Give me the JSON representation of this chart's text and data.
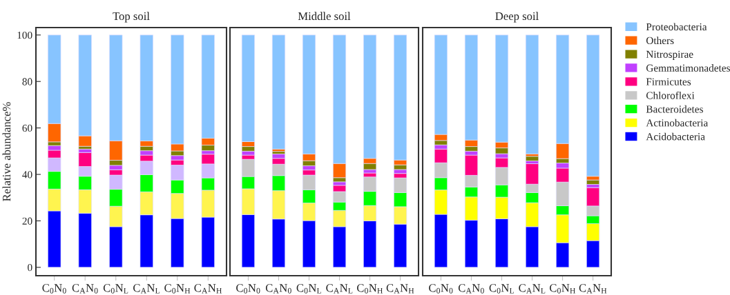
{
  "chart_data": [
    {
      "type": "bar",
      "stacked": true,
      "title": "Top soil",
      "ylabel": "Relative abundance%",
      "categories": [
        "C$_{0}$N$_{0}$",
        "C$_{A}$N$_{0}$",
        "C$_{0}$N$_{L}$",
        "C$_{A}$N$_{L}$",
        "C$_{0}$N$_{H}$",
        "C$_{A}$N$_{H}$"
      ],
      "ylim": [
        -3.6,
        103.2
      ],
      "yticks": [
        0,
        20,
        40,
        60,
        80,
        100
      ],
      "grid": false,
      "legend": false,
      "series": [
        {
          "color": "#0000ff",
          "values": [
            24.3,
            23.3,
            17.5,
            22.6,
            21.0,
            21.6
          ]
        },
        {
          "color": "#fff44f",
          "values": [
            9.4,
            10.1,
            8.8,
            9.9,
            10.8,
            11.6
          ]
        },
        {
          "color": "#00ff00",
          "values": [
            7.6,
            5.8,
            7.3,
            7.4,
            5.8,
            5.3
          ]
        },
        {
          "color": "#d0b8ff",
          "values": [
            5.8,
            4.2,
            6.1,
            5.8,
            6.4,
            6.0
          ]
        },
        {
          "color": "#ff0080",
          "values": [
            3.3,
            6.0,
            2.3,
            2.6,
            2.2,
            4.2
          ]
        },
        {
          "color": "#c040ff",
          "values": [
            2.0,
            1.5,
            1.9,
            1.9,
            1.9,
            1.5
          ]
        },
        {
          "color": "#808000",
          "values": [
            1.6,
            1.2,
            2.2,
            1.9,
            2.0,
            2.4
          ]
        },
        {
          "color": "#ff6600",
          "values": [
            7.9,
            4.5,
            8.4,
            2.3,
            3.0,
            3.0
          ]
        },
        {
          "color": "#87c4ff",
          "values": [
            38.1,
            43.4,
            45.5,
            45.6,
            46.9,
            44.4
          ]
        }
      ]
    },
    {
      "type": "bar",
      "stacked": true,
      "title": "Middle soil",
      "categories": [
        "C$_{0}$N$_{0}$",
        "C$_{A}$N$_{0}$",
        "C$_{0}$N$_{L}$",
        "C$_{A}$N$_{L}$",
        "C$_{0}$N$_{H}$",
        "C$_{A}$N$_{H}$"
      ],
      "ylim": [
        -3.6,
        103.2
      ],
      "yticks": [
        0,
        20,
        40,
        60,
        80,
        100
      ],
      "tick_labels": "x",
      "grid": false,
      "legend": false,
      "series": [
        {
          "color": "#0000ff",
          "values": [
            22.7,
            20.8,
            20.1,
            17.5,
            20.0,
            18.6
          ]
        },
        {
          "color": "#fff44f",
          "values": [
            11.1,
            12.2,
            7.6,
            7.0,
            6.6,
            7.5
          ]
        },
        {
          "color": "#00ff00",
          "values": [
            5.3,
            6.5,
            5.7,
            3.6,
            6.1,
            6.1
          ]
        },
        {
          "color": "#c8c8c8",
          "values": [
            7.4,
            4.9,
            6.3,
            4.5,
            6.2,
            6.3
          ]
        },
        {
          "color": "#ff0080",
          "values": [
            1.8,
            2.5,
            2.2,
            2.7,
            1.7,
            1.9
          ]
        },
        {
          "color": "#c040ff",
          "values": [
            1.7,
            1.9,
            1.8,
            1.5,
            1.5,
            1.7
          ]
        },
        {
          "color": "#808000",
          "values": [
            2.0,
            1.1,
            2.2,
            1.8,
            2.6,
            2.0
          ]
        },
        {
          "color": "#ff6600",
          "values": [
            2.1,
            1.0,
            2.9,
            6.1,
            2.2,
            2.1
          ]
        },
        {
          "color": "#87c4ff",
          "values": [
            45.9,
            49.1,
            51.2,
            55.3,
            53.1,
            53.8
          ]
        }
      ]
    },
    {
      "type": "bar",
      "stacked": true,
      "title": "Deep soil",
      "categories": [
        "C$_{0}$N$_{0}$",
        "C$_{A}$N$_{0}$",
        "C$_{0}$N$_{L}$",
        "C$_{A}$N$_{L}$",
        "C$_{0}$N$_{H}$",
        "C$_{A}$N$_{H}$"
      ],
      "ylim": [
        -3.6,
        103.2
      ],
      "yticks": [
        0,
        20,
        40,
        60,
        80,
        100
      ],
      "tick_labels": "x",
      "grid": false,
      "legend": "right",
      "series": [
        {
          "name": "Acidobacteria",
          "color": "#0000ff",
          "values": [
            22.8,
            20.3,
            20.9,
            17.5,
            10.6,
            11.5
          ]
        },
        {
          "name": "Actinobacteria",
          "color": "#ffff00",
          "values": [
            10.5,
            10.0,
            9.3,
            10.3,
            12.0,
            7.3
          ]
        },
        {
          "name": "Bacteroidetes",
          "color": "#00ff00",
          "values": [
            5.3,
            4.3,
            5.3,
            4.4,
            3.9,
            3.4
          ]
        },
        {
          "name": "Chloroflexi",
          "color": "#c8c8c8",
          "values": [
            6.4,
            5.0,
            7.5,
            3.6,
            10.2,
            4.2
          ]
        },
        {
          "name": "Firmicutes",
          "color": "#ff0080",
          "values": [
            5.9,
            8.7,
            4.1,
            8.8,
            6.0,
            7.9
          ]
        },
        {
          "name": "Gemmatimonadetes",
          "color": "#c040ff",
          "values": [
            1.8,
            1.7,
            1.8,
            1.2,
            2.2,
            1.4
          ]
        },
        {
          "name": "Nitrospirae",
          "color": "#808000",
          "values": [
            1.9,
            2.0,
            2.5,
            2.0,
            1.9,
            1.9
          ]
        },
        {
          "name": "Others",
          "color": "#ff6600",
          "values": [
            2.6,
            2.8,
            2.5,
            1.0,
            6.5,
            1.6
          ]
        },
        {
          "name": "Proteobacteria",
          "color": "#87c4ff",
          "values": [
            42.8,
            45.2,
            46.1,
            51.2,
            46.7,
            60.8
          ]
        }
      ]
    }
  ]
}
